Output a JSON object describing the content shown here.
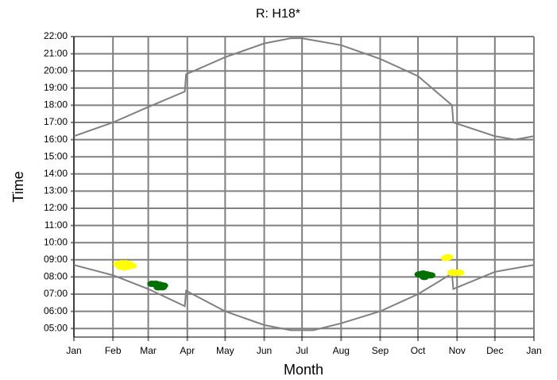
{
  "chart_data": {
    "type": "line",
    "title": "R: H18*",
    "xlabel": "Month",
    "ylabel": "Time",
    "xlim": [
      0,
      365
    ],
    "ylim": [
      4.5,
      22
    ],
    "grid": true,
    "grid_color": "#808080",
    "xticks": [
      {
        "value": 0,
        "label": "Jan"
      },
      {
        "value": 31,
        "label": "Feb"
      },
      {
        "value": 59,
        "label": "Mar"
      },
      {
        "value": 90,
        "label": "Apr"
      },
      {
        "value": 120,
        "label": "May"
      },
      {
        "value": 151,
        "label": "Jun"
      },
      {
        "value": 181,
        "label": "Jul"
      },
      {
        "value": 212,
        "label": "Aug"
      },
      {
        "value": 243,
        "label": "Sep"
      },
      {
        "value": 273,
        "label": "Oct"
      },
      {
        "value": 304,
        "label": "Nov"
      },
      {
        "value": 334,
        "label": "Dec"
      },
      {
        "value": 365,
        "label": "Jan"
      }
    ],
    "yticks": [
      {
        "value": 5,
        "label": "05:00"
      },
      {
        "value": 6,
        "label": "06:00"
      },
      {
        "value": 7,
        "label": "07:00"
      },
      {
        "value": 8,
        "label": "08:00"
      },
      {
        "value": 9,
        "label": "09:00"
      },
      {
        "value": 10,
        "label": "10:00"
      },
      {
        "value": 11,
        "label": "11:00"
      },
      {
        "value": 12,
        "label": "12:00"
      },
      {
        "value": 13,
        "label": "13:00"
      },
      {
        "value": 14,
        "label": "14:00"
      },
      {
        "value": 15,
        "label": "15:00"
      },
      {
        "value": 16,
        "label": "16:00"
      },
      {
        "value": 17,
        "label": "17:00"
      },
      {
        "value": 18,
        "label": "18:00"
      },
      {
        "value": 19,
        "label": "19:00"
      },
      {
        "value": 20,
        "label": "20:00"
      },
      {
        "value": 21,
        "label": "21:00"
      },
      {
        "value": 22,
        "label": "22:00"
      }
    ],
    "series": [
      {
        "mode": "line",
        "color": "#808080",
        "x": [
          0,
          31,
          59,
          88,
          89,
          120,
          151,
          172,
          181,
          212,
          243,
          273,
          300,
          301,
          334,
          350,
          365
        ],
        "values": [
          16.2,
          17.0,
          17.9,
          18.8,
          19.8,
          20.8,
          21.6,
          21.9,
          21.9,
          21.5,
          20.7,
          19.7,
          18.0,
          17.0,
          16.2,
          16.0,
          16.2
        ]
      },
      {
        "mode": "line",
        "color": "#808080",
        "x": [
          0,
          31,
          59,
          88,
          89,
          120,
          151,
          172,
          190,
          212,
          243,
          273,
          300,
          301,
          334,
          365
        ],
        "values": [
          8.7,
          8.1,
          7.3,
          6.3,
          7.2,
          6.0,
          5.2,
          4.9,
          4.9,
          5.3,
          6.0,
          7.0,
          8.2,
          7.3,
          8.3,
          8.7
        ]
      },
      {
        "mode": "markers",
        "color": "#ffff00",
        "x": [
          35,
          38,
          41,
          44,
          46,
          37,
          40,
          43,
          295,
          297,
          300,
          303,
          306
        ],
        "values": [
          8.75,
          8.8,
          8.8,
          8.75,
          8.65,
          8.6,
          8.55,
          8.6,
          9.1,
          9.15,
          8.25,
          8.25,
          8.25
        ]
      },
      {
        "mode": "markers",
        "color": "#007000",
        "x": [
          62,
          65,
          68,
          71,
          67,
          70,
          274,
          277,
          280,
          283,
          278
        ],
        "values": [
          7.6,
          7.6,
          7.55,
          7.5,
          7.4,
          7.4,
          8.15,
          8.2,
          8.15,
          8.1,
          8.0
        ]
      }
    ]
  }
}
